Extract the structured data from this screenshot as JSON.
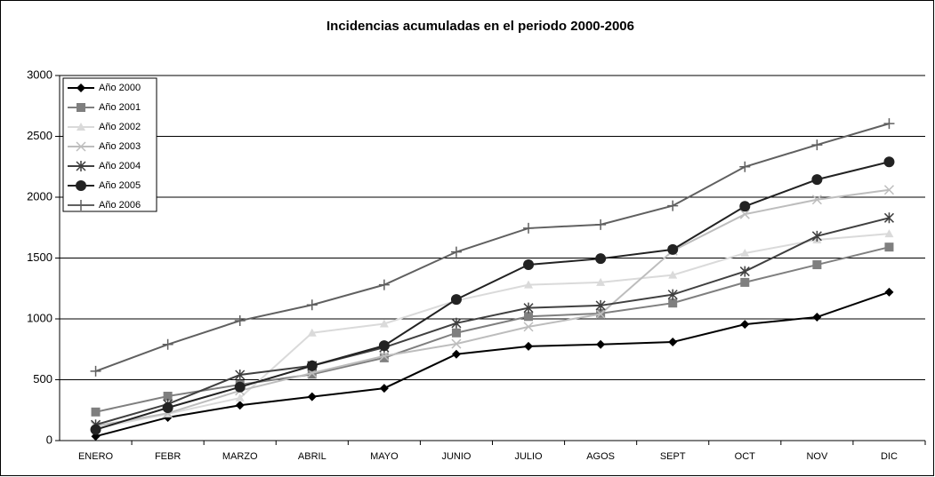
{
  "chart_data": {
    "type": "line",
    "title": "Incidencias acumuladas en el periodo 2000-2006",
    "categories": [
      "ENERO",
      "FEBR",
      "MARZO",
      "ABRIL",
      "MAYO",
      "JUNIO",
      "JULIO",
      "AGOS",
      "SEPT",
      "OCT",
      "NOV",
      "DIC"
    ],
    "series": [
      {
        "name": "Año 2000",
        "color": "#000000",
        "marker": "diamond",
        "values": [
          35,
          190,
          290,
          360,
          430,
          710,
          775,
          790,
          810,
          955,
          1015,
          1220
        ]
      },
      {
        "name": "Año 2001",
        "color": "#7f7f7f",
        "marker": "square",
        "values": [
          235,
          365,
          460,
          545,
          680,
          885,
          1020,
          1045,
          1130,
          1300,
          1445,
          1590
        ]
      },
      {
        "name": "Año 2002",
        "color": "#dadada",
        "marker": "triangle",
        "values": [
          100,
          220,
          350,
          885,
          960,
          1150,
          1280,
          1300,
          1360,
          1540,
          1650,
          1700
        ]
      },
      {
        "name": "Año 2003",
        "color": "#bdbdbd",
        "marker": "x",
        "values": [
          120,
          225,
          410,
          555,
          695,
          795,
          935,
          1040,
          1560,
          1860,
          1980,
          2060
        ]
      },
      {
        "name": "Año 2004",
        "color": "#404040",
        "marker": "asterisk",
        "values": [
          130,
          300,
          540,
          615,
          765,
          965,
          1090,
          1110,
          1200,
          1390,
          1680,
          1830
        ]
      },
      {
        "name": "Año 2005",
        "color": "#222222",
        "marker": "circle",
        "values": [
          90,
          270,
          440,
          615,
          780,
          1160,
          1445,
          1495,
          1570,
          1925,
          2145,
          2290
        ]
      },
      {
        "name": "Año 2006",
        "color": "#606060",
        "marker": "plus",
        "values": [
          570,
          790,
          985,
          1115,
          1280,
          1550,
          1745,
          1775,
          1930,
          2250,
          2430,
          2605
        ]
      }
    ],
    "ylim": [
      0,
      3000
    ],
    "yticks": [
      0,
      500,
      1000,
      1500,
      2000,
      2500,
      3000
    ],
    "grid": true,
    "legend": "top-left"
  }
}
